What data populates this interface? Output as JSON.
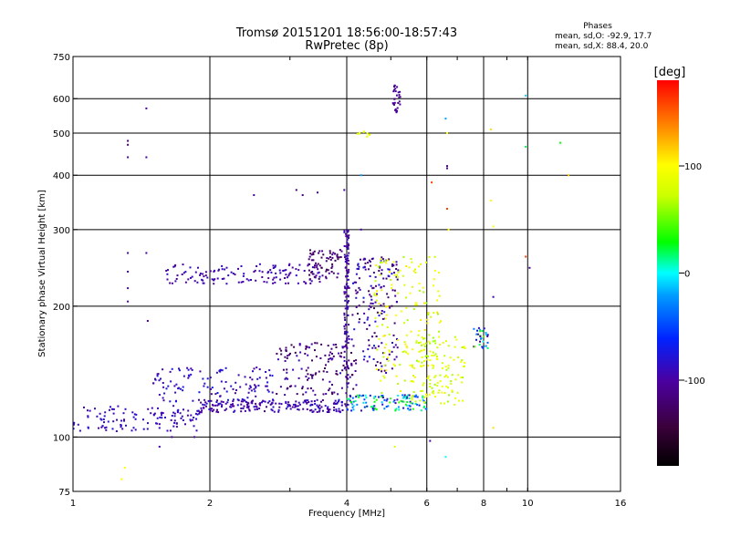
{
  "chart_data": {
    "type": "scatter",
    "title": "Tromsø 20151201 18:56:00-18:57:43",
    "subtitle": "RwPretec (8p)",
    "xlabel": "Frequency [MHz]",
    "ylabel": "Stationary phase Virtual Height [km]",
    "x_scale": "log",
    "y_scale": "log",
    "xlim": [
      1,
      16
    ],
    "ylim": [
      75,
      750
    ],
    "x_ticks": [
      1,
      2,
      4,
      6,
      8,
      10,
      16
    ],
    "y_ticks": [
      75,
      100,
      200,
      300,
      400,
      500,
      600,
      750
    ],
    "grid": true,
    "stats": {
      "heading": "Phases",
      "line1": "mean, sd,O: -92.9, 17.7",
      "line2": "mean, sd,X:  88.4, 20.0"
    },
    "colorbar": {
      "label": "[deg]",
      "range": [
        -180,
        180
      ],
      "ticks": [
        -100,
        0,
        100
      ]
    },
    "traces": [
      {
        "fmin": 1.0,
        "fmax": 1.9,
        "hmin": 103,
        "hmax": 118,
        "phase_min": -100,
        "phase_max": -80,
        "n": 120
      },
      {
        "fmin": 1.9,
        "fmax": 4.1,
        "hmin": 114,
        "hmax": 122,
        "phase_min": -110,
        "phase_max": -80,
        "n": 200
      },
      {
        "fmin": 1.5,
        "fmax": 2.8,
        "hmin": 120,
        "hmax": 145,
        "phase_min": -105,
        "phase_max": -70,
        "n": 120
      },
      {
        "fmin": 2.8,
        "fmax": 4.2,
        "hmin": 125,
        "hmax": 165,
        "phase_min": -140,
        "phase_max": -85,
        "n": 140
      },
      {
        "fmin": 3.95,
        "fmax": 4.05,
        "hmin": 130,
        "hmax": 300,
        "phase_min": -110,
        "phase_max": -85,
        "n": 120
      },
      {
        "fmin": 4.0,
        "fmax": 6.0,
        "hmin": 115,
        "hmax": 125,
        "phase_min": -100,
        "phase_max": 40,
        "n": 120
      },
      {
        "fmin": 4.1,
        "fmax": 5.2,
        "hmin": 140,
        "hmax": 260,
        "phase_min": -130,
        "phase_max": -70,
        "n": 160
      },
      {
        "fmin": 4.6,
        "fmax": 6.5,
        "hmin": 120,
        "hmax": 260,
        "phase_min": 60,
        "phase_max": 110,
        "n": 170
      },
      {
        "fmin": 5.5,
        "fmax": 7.3,
        "hmin": 118,
        "hmax": 170,
        "phase_min": 60,
        "phase_max": 100,
        "n": 110
      },
      {
        "fmin": 1.6,
        "fmax": 3.5,
        "hmin": 225,
        "hmax": 250,
        "phase_min": -105,
        "phase_max": -85,
        "n": 130
      },
      {
        "fmin": 3.3,
        "fmax": 3.9,
        "hmin": 230,
        "hmax": 270,
        "phase_min": -140,
        "phase_max": -100,
        "n": 70
      },
      {
        "fmin": 5.05,
        "fmax": 5.25,
        "hmin": 555,
        "hmax": 645,
        "phase_min": -110,
        "phase_max": -100,
        "n": 30
      },
      {
        "fmin": 7.6,
        "fmax": 8.2,
        "hmin": 160,
        "hmax": 180,
        "phase_min": -150,
        "phase_max": 50,
        "n": 30
      },
      {
        "fmin": 4.2,
        "fmax": 4.5,
        "hmin": 490,
        "hmax": 505,
        "phase_min": 80,
        "phase_max": 100,
        "n": 10
      }
    ],
    "isolated_points": [
      {
        "f": 1.32,
        "h": 480,
        "phase": -120
      },
      {
        "f": 1.32,
        "h": 470,
        "phase": -120
      },
      {
        "f": 1.32,
        "h": 440,
        "phase": -100
      },
      {
        "f": 1.45,
        "h": 440,
        "phase": -100
      },
      {
        "f": 1.45,
        "h": 570,
        "phase": -100
      },
      {
        "f": 1.32,
        "h": 265,
        "phase": -100
      },
      {
        "f": 1.32,
        "h": 240,
        "phase": -100
      },
      {
        "f": 1.32,
        "h": 220,
        "phase": -100
      },
      {
        "f": 1.32,
        "h": 205,
        "phase": -100
      },
      {
        "f": 1.45,
        "h": 265,
        "phase": -100
      },
      {
        "f": 1.46,
        "h": 185,
        "phase": -100
      },
      {
        "f": 1.3,
        "h": 85,
        "phase": 100
      },
      {
        "f": 1.28,
        "h": 80,
        "phase": 100
      },
      {
        "f": 2.5,
        "h": 360,
        "phase": -100
      },
      {
        "f": 3.1,
        "h": 370,
        "phase": -120
      },
      {
        "f": 3.2,
        "h": 360,
        "phase": -110
      },
      {
        "f": 3.45,
        "h": 365,
        "phase": -100
      },
      {
        "f": 3.95,
        "h": 370,
        "phase": -100
      },
      {
        "f": 4.3,
        "h": 400,
        "phase": -20
      },
      {
        "f": 4.3,
        "h": 300,
        "phase": -100
      },
      {
        "f": 6.15,
        "h": 385,
        "phase": 160
      },
      {
        "f": 6.6,
        "h": 540,
        "phase": -20
      },
      {
        "f": 6.65,
        "h": 500,
        "phase": 100
      },
      {
        "f": 6.65,
        "h": 420,
        "phase": -100
      },
      {
        "f": 6.65,
        "h": 415,
        "phase": -100
      },
      {
        "f": 6.65,
        "h": 335,
        "phase": 160
      },
      {
        "f": 6.7,
        "h": 300,
        "phase": 100
      },
      {
        "f": 8.3,
        "h": 510,
        "phase": 110
      },
      {
        "f": 8.3,
        "h": 350,
        "phase": 100
      },
      {
        "f": 8.4,
        "h": 305,
        "phase": 100
      },
      {
        "f": 8.4,
        "h": 210,
        "phase": -100
      },
      {
        "f": 9.9,
        "h": 610,
        "phase": -10
      },
      {
        "f": 9.9,
        "h": 465,
        "phase": 20
      },
      {
        "f": 9.9,
        "h": 260,
        "phase": 160
      },
      {
        "f": 10.1,
        "h": 245,
        "phase": -110
      },
      {
        "f": 11.8,
        "h": 475,
        "phase": 30
      },
      {
        "f": 12.3,
        "h": 400,
        "phase": 120
      },
      {
        "f": 6.1,
        "h": 98,
        "phase": -100
      },
      {
        "f": 6.6,
        "h": 90,
        "phase": 0
      },
      {
        "f": 8.4,
        "h": 105,
        "phase": 110
      },
      {
        "f": 5.1,
        "h": 95,
        "phase": 80
      },
      {
        "f": 1.55,
        "h": 95,
        "phase": -100
      },
      {
        "f": 1.65,
        "h": 100,
        "phase": -100
      },
      {
        "f": 1.85,
        "h": 100,
        "phase": -100
      }
    ]
  }
}
